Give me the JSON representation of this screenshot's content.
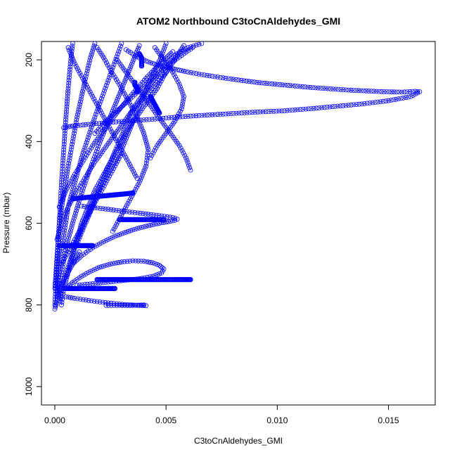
{
  "chart_data": {
    "type": "scatter",
    "title": "ATOM2 Northbound C3toCnAldehydes_GMI",
    "xlabel": "C3toCnAldehydes_GMI",
    "ylabel": "Pressure (mbar)",
    "xlim": [
      -0.0006,
      0.0171
    ],
    "ylim": [
      1045,
      155
    ],
    "y_reversed": true,
    "x_ticks": [
      {
        "value": 0.0,
        "label": "0.000"
      },
      {
        "value": 0.005,
        "label": "0.005"
      },
      {
        "value": 0.01,
        "label": "0.010"
      },
      {
        "value": 0.015,
        "label": "0.015"
      }
    ],
    "y_ticks": [
      {
        "value": 200,
        "label": "200"
      },
      {
        "value": 400,
        "label": "400"
      },
      {
        "value": 600,
        "label": "600"
      },
      {
        "value": 800,
        "label": "800"
      },
      {
        "value": 1000,
        "label": "1000"
      }
    ],
    "marker": "open-circle",
    "color": "#0000ff",
    "grid": false,
    "series": [
      {
        "x": [
          0.0003,
          0.0004,
          0.0006,
          0.0008,
          0.001,
          0.0012,
          0.0015,
          0.0018,
          0.0022,
          0.0026,
          0.003,
          0.0034,
          0.0038,
          0.0042,
          0.0046,
          0.0049,
          0.0052,
          0.0055,
          0.0058
        ],
        "y": [
          800,
          760,
          720,
          680,
          640,
          600,
          560,
          520,
          480,
          440,
          400,
          360,
          330,
          300,
          270,
          240,
          215,
          190,
          165
        ]
      },
      {
        "x": [
          0.0002,
          0.0004,
          0.0007,
          0.001,
          0.0014,
          0.0018,
          0.0022,
          0.0026,
          0.003,
          0.0033,
          0.0036,
          0.0039,
          0.0042,
          0.0045,
          0.0048,
          0.005
        ],
        "y": [
          790,
          740,
          690,
          640,
          590,
          540,
          500,
          460,
          420,
          380,
          340,
          300,
          260,
          225,
          190,
          160
        ]
      },
      {
        "x": [
          0.0001,
          0.0003,
          0.0005,
          0.0008,
          0.0011,
          0.0014,
          0.0017,
          0.002,
          0.0023,
          0.0026,
          0.0029,
          0.0032,
          0.0035,
          0.0038
        ],
        "y": [
          780,
          720,
          660,
          600,
          545,
          495,
          450,
          405,
          365,
          325,
          285,
          245,
          205,
          165
        ]
      },
      {
        "x": [
          0.0001,
          0.0002,
          0.0004,
          0.0006,
          0.0009,
          0.0012,
          0.0015,
          0.0018,
          0.0021,
          0.0024,
          0.0027,
          0.003
        ],
        "y": [
          770,
          700,
          630,
          560,
          500,
          440,
          390,
          340,
          295,
          250,
          205,
          160
        ]
      },
      {
        "x": [
          0.0,
          0.0001,
          0.0002,
          0.0004,
          0.0006,
          0.0008,
          0.001,
          0.0012,
          0.0014,
          0.0016,
          0.0018
        ],
        "y": [
          760,
          680,
          600,
          530,
          460,
          400,
          340,
          290,
          240,
          195,
          160
        ]
      },
      {
        "x": [
          0.0,
          0.0001,
          0.0002,
          0.0003,
          0.0004,
          0.0005,
          0.0006,
          0.0007,
          0.0008
        ],
        "y": [
          800,
          700,
          600,
          500,
          420,
          340,
          270,
          210,
          160
        ]
      },
      {
        "x": [
          0.001,
          0.0013,
          0.0017,
          0.0021,
          0.0025,
          0.0029,
          0.0032,
          0.0035,
          0.0039,
          0.0043,
          0.0047,
          0.0051,
          0.0055,
          0.006,
          0.0066
        ],
        "y": [
          650,
          610,
          560,
          500,
          450,
          400,
          360,
          320,
          290,
          260,
          230,
          205,
          185,
          170,
          160
        ]
      },
      {
        "x": [
          0.0032,
          0.0034,
          0.0036,
          0.0039,
          0.0042,
          0.0046,
          0.005,
          0.0055,
          0.006,
          0.0066,
          0.0072,
          0.0078,
          0.0085,
          0.0092,
          0.01,
          0.0108,
          0.0116,
          0.0124,
          0.0132,
          0.014,
          0.0148,
          0.0156,
          0.0162,
          0.0164,
          0.016,
          0.015,
          0.0138,
          0.0126,
          0.0114,
          0.0102,
          0.009,
          0.0078,
          0.0066,
          0.0055,
          0.0045,
          0.0035,
          0.0025,
          0.0015,
          0.0008,
          0.0004
        ],
        "y": [
          175,
          182,
          190,
          198,
          205,
          212,
          218,
          224,
          230,
          236,
          241,
          246,
          251,
          256,
          260,
          264,
          268,
          271,
          274,
          276,
          278,
          279,
          277,
          278,
          290,
          300,
          308,
          314,
          320,
          325,
          328,
          332,
          336,
          340,
          345,
          349,
          353,
          358,
          362,
          366
        ]
      },
      {
        "x": [
          0.0005,
          0.0008,
          0.0012,
          0.0016,
          0.002,
          0.0025,
          0.003,
          0.0035,
          0.004,
          0.0044,
          0.0047,
          0.0049,
          0.0048,
          0.0044,
          0.0038,
          0.0031,
          0.0024,
          0.0017,
          0.001
        ],
        "y": [
          760,
          745,
          730,
          718,
          708,
          700,
          695,
          692,
          693,
          697,
          703,
          712,
          722,
          730,
          736,
          740,
          744,
          748,
          752
        ]
      },
      {
        "x": [
          0.0008,
          0.0012,
          0.0017,
          0.0022,
          0.0027,
          0.0032,
          0.0037,
          0.0042,
          0.0047,
          0.0051,
          0.0054,
          0.0055,
          0.0053,
          0.0048,
          0.0042,
          0.0036,
          0.003,
          0.0024,
          0.0018,
          0.0012
        ],
        "y": [
          700,
          680,
          660,
          645,
          632,
          622,
          613,
          606,
          600,
          596,
          593,
          590,
          586,
          582,
          578,
          574,
          570,
          566,
          562,
          558
        ]
      },
      {
        "x": [
          0.0005,
          0.0009,
          0.0014,
          0.0019,
          0.0024,
          0.0029,
          0.0034,
          0.0038,
          0.0041,
          0.004,
          0.0035,
          0.0029,
          0.0023
        ],
        "y": [
          780,
          784,
          788,
          792,
          795,
          798,
          800,
          801,
          802,
          800,
          801,
          801,
          801
        ]
      },
      {
        "x": [
          0.0003,
          0.0006,
          0.0009,
          0.0012,
          0.0015,
          0.0018,
          0.0021,
          0.0024,
          0.0027,
          0.003
        ],
        "y": [
          700,
          670,
          640,
          610,
          580,
          550,
          520,
          490,
          460,
          430
        ]
      },
      {
        "x": [
          0.0001,
          0.0003,
          0.0006,
          0.001,
          0.0014,
          0.0018,
          0.0022,
          0.0026,
          0.003,
          0.0034,
          0.0038,
          0.0042,
          0.0046,
          0.005
        ],
        "y": [
          640,
          600,
          560,
          520,
          485,
          450,
          420,
          390,
          360,
          330,
          305,
          280,
          255,
          230
        ]
      },
      {
        "x": [
          0.0002,
          0.0005,
          0.0009,
          0.0013,
          0.0017,
          0.0021,
          0.0025,
          0.0029,
          0.0033,
          0.0037,
          0.0041,
          0.0045,
          0.0049,
          0.0053
        ],
        "y": [
          560,
          520,
          480,
          445,
          410,
          380,
          350,
          322,
          295,
          270,
          245,
          222,
          200,
          180
        ]
      },
      {
        "x": [
          0.0028,
          0.0032,
          0.0036,
          0.004,
          0.0044,
          0.0048,
          0.0052,
          0.0056,
          0.0059,
          0.0061
        ],
        "y": [
          200,
          230,
          260,
          290,
          320,
          350,
          380,
          410,
          440,
          470
        ]
      },
      {
        "x": [
          0.0045,
          0.0049,
          0.0053,
          0.0056,
          0.0058,
          0.0057,
          0.0054,
          0.005,
          0.0046,
          0.0043
        ],
        "y": [
          170,
          200,
          230,
          260,
          290,
          320,
          350,
          380,
          410,
          440
        ]
      },
      {
        "x": [
          0.0019,
          0.0022,
          0.0025,
          0.0029,
          0.0033,
          0.0037,
          0.004,
          0.0042,
          0.0041,
          0.0038,
          0.0034,
          0.003,
          0.0026
        ],
        "y": [
          170,
          195,
          225,
          260,
          300,
          340,
          380,
          420,
          460,
          500,
          540,
          580,
          620
        ]
      },
      {
        "x": [
          0.0006,
          0.0009,
          0.0013,
          0.0017,
          0.0021,
          0.0025,
          0.0029,
          0.0033,
          0.0037
        ],
        "y": [
          170,
          210,
          250,
          290,
          330,
          370,
          410,
          450,
          490
        ]
      },
      {
        "x": [
          0.0,
          0.0001,
          0.0002,
          0.0003,
          0.0005,
          0.0007,
          0.0009,
          0.0011
        ],
        "y": [
          810,
          790,
          770,
          750,
          730,
          710,
          690,
          670
        ]
      },
      {
        "x": [
          0.0018,
          0.0023,
          0.0029,
          0.0035,
          0.0041,
          0.0047,
          0.0053,
          0.0058,
          0.0062
        ],
        "y": [
          380,
          350,
          320,
          290,
          260,
          230,
          205,
          185,
          170
        ]
      }
    ],
    "clusters": [
      {
        "x": [
          0.0029,
          0.0033,
          0.0037,
          0.0041,
          0.0045,
          0.0049
        ],
        "y": [
          591,
          591,
          591,
          591,
          591,
          591
        ]
      },
      {
        "x": [
          0.0019,
          0.0024,
          0.003,
          0.0036,
          0.0042,
          0.0048,
          0.0054,
          0.0059,
          0.0061
        ],
        "y": [
          738,
          738,
          738,
          738,
          738,
          738,
          738,
          738,
          738
        ]
      },
      {
        "x": [
          0.0004,
          0.0008,
          0.0012,
          0.0016,
          0.002,
          0.0024,
          0.0027
        ],
        "y": [
          760,
          760,
          760,
          760,
          760,
          760,
          760
        ]
      },
      {
        "x": [
          0.0008,
          0.0012,
          0.0016,
          0.002,
          0.0024,
          0.0028,
          0.0032,
          0.0035
        ],
        "y": [
          540,
          538,
          536,
          534,
          532,
          530,
          528,
          526
        ]
      },
      {
        "x": [
          0.0002,
          0.0005,
          0.0008,
          0.0011,
          0.0014,
          0.0017
        ],
        "y": [
          655,
          655,
          655,
          655,
          655,
          655
        ]
      },
      {
        "x": [
          0.0043,
          0.0044,
          0.0045,
          0.0046,
          0.0047
        ],
        "y": [
          290,
          300,
          310,
          320,
          330
        ]
      },
      {
        "x": [
          0.0038,
          0.0039,
          0.0039,
          0.0039
        ],
        "y": [
          185,
          195,
          205,
          215
        ]
      },
      {
        "x": [
          0.0036,
          0.0036,
          0.0037,
          0.0037
        ],
        "y": [
          255,
          262,
          270,
          278
        ]
      }
    ]
  }
}
